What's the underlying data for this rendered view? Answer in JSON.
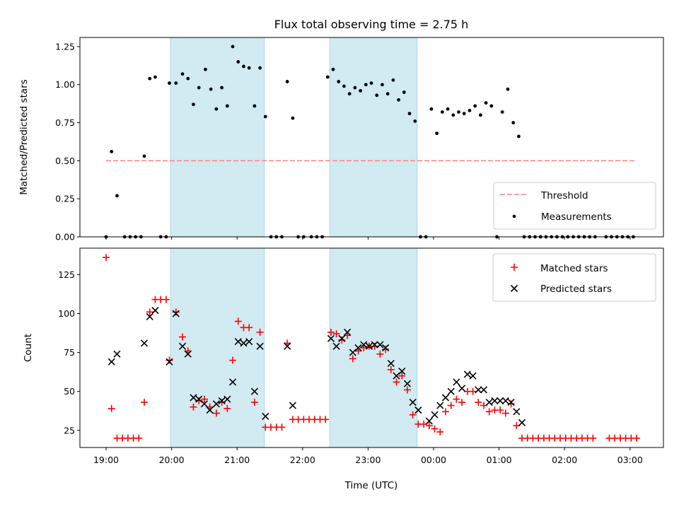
{
  "title": "Flux total observing time = 2.75 h",
  "colors": {
    "threshold": "#ff8080",
    "measurement": "#000000",
    "matched": "#ff0000",
    "predicted": "#000000",
    "shade": "#add8e6"
  },
  "chart_data": [
    {
      "type": "scatter",
      "ylabel": "Matched/Predicted stars",
      "xlabel": "",
      "ylim": [
        0,
        1.31
      ],
      "yticks": [
        "0.00",
        "0.25",
        "0.50",
        "0.75",
        "1.00",
        "1.25"
      ],
      "x_tick_labels_shown": false,
      "shaded_spans": [
        [
          "19:59",
          "21:25"
        ],
        [
          "22:25",
          "23:45"
        ]
      ],
      "legend": {
        "position": "lower right",
        "entries": [
          "Threshold",
          "Measurements"
        ]
      },
      "series": [
        {
          "name": "Threshold",
          "kind": "dashed-line",
          "x": [
            "19:00",
            "03:05"
          ],
          "y": [
            0.5,
            0.5
          ]
        },
        {
          "name": "Measurements",
          "kind": "points",
          "points": [
            [
              "19:00",
              0.0
            ],
            [
              "19:05",
              0.56
            ],
            [
              "19:10",
              0.27
            ],
            [
              "19:17",
              0.0
            ],
            [
              "19:22",
              0.0
            ],
            [
              "19:27",
              0.0
            ],
            [
              "19:32",
              0.0
            ],
            [
              "19:35",
              0.53
            ],
            [
              "19:40",
              1.04
            ],
            [
              "19:45",
              1.05
            ],
            [
              "19:50",
              0.0
            ],
            [
              "19:55",
              0.0
            ],
            [
              "19:58",
              1.01
            ],
            [
              "20:04",
              1.01
            ],
            [
              "20:10",
              1.07
            ],
            [
              "20:15",
              1.04
            ],
            [
              "20:20",
              0.87
            ],
            [
              "20:25",
              0.98
            ],
            [
              "20:31",
              1.1
            ],
            [
              "20:36",
              0.97
            ],
            [
              "20:41",
              0.84
            ],
            [
              "20:46",
              0.98
            ],
            [
              "20:51",
              0.86
            ],
            [
              "20:56",
              1.25
            ],
            [
              "21:01",
              1.15
            ],
            [
              "21:06",
              1.12
            ],
            [
              "21:11",
              1.11
            ],
            [
              "21:16",
              0.86
            ],
            [
              "21:21",
              1.11
            ],
            [
              "21:26",
              0.79
            ],
            [
              "21:31",
              0.0
            ],
            [
              "21:36",
              0.0
            ],
            [
              "21:41",
              0.0
            ],
            [
              "21:46",
              1.02
            ],
            [
              "21:51",
              0.78
            ],
            [
              "21:56",
              0.0
            ],
            [
              "22:01",
              0.0
            ],
            [
              "22:08",
              0.0
            ],
            [
              "22:13",
              0.0
            ],
            [
              "22:18",
              0.0
            ],
            [
              "22:23",
              1.05
            ],
            [
              "22:28",
              1.1
            ],
            [
              "22:33",
              1.02
            ],
            [
              "22:38",
              0.99
            ],
            [
              "22:43",
              0.94
            ],
            [
              "22:48",
              0.98
            ],
            [
              "22:53",
              0.96
            ],
            [
              "22:58",
              1.0
            ],
            [
              "23:03",
              1.01
            ],
            [
              "23:08",
              0.93
            ],
            [
              "23:13",
              1.0
            ],
            [
              "23:18",
              0.94
            ],
            [
              "23:23",
              1.03
            ],
            [
              "23:28",
              0.9
            ],
            [
              "23:33",
              0.95
            ],
            [
              "23:38",
              0.81
            ],
            [
              "23:43",
              0.76
            ],
            [
              "23:48",
              0.0
            ],
            [
              "23:53",
              0.0
            ],
            [
              "23:58",
              0.84
            ],
            [
              "00:03",
              0.68
            ],
            [
              "00:08",
              0.82
            ],
            [
              "00:13",
              0.84
            ],
            [
              "00:18",
              0.8
            ],
            [
              "00:23",
              0.82
            ],
            [
              "00:28",
              0.81
            ],
            [
              "00:33",
              0.83
            ],
            [
              "00:38",
              0.86
            ],
            [
              "00:43",
              0.8
            ],
            [
              "00:48",
              0.88
            ],
            [
              "00:53",
              0.86
            ],
            [
              "00:58",
              0.0
            ],
            [
              "01:03",
              0.82
            ],
            [
              "01:08",
              0.97
            ],
            [
              "01:13",
              0.75
            ],
            [
              "01:18",
              0.66
            ],
            [
              "01:23",
              0.0
            ],
            [
              "01:28",
              0.0
            ],
            [
              "01:33",
              0.0
            ],
            [
              "01:38",
              0.0
            ],
            [
              "01:43",
              0.0
            ],
            [
              "01:48",
              0.0
            ],
            [
              "01:53",
              0.0
            ],
            [
              "01:58",
              0.0
            ],
            [
              "02:03",
              0.0
            ],
            [
              "02:08",
              0.0
            ],
            [
              "02:13",
              0.0
            ],
            [
              "02:18",
              0.0
            ],
            [
              "02:23",
              0.0
            ],
            [
              "02:28",
              0.0
            ],
            [
              "02:38",
              0.0
            ],
            [
              "02:43",
              0.0
            ],
            [
              "02:48",
              0.0
            ],
            [
              "02:53",
              0.0
            ],
            [
              "02:58",
              0.0
            ],
            [
              "03:03",
              0.0
            ]
          ]
        }
      ]
    },
    {
      "type": "scatter",
      "ylabel": "Count",
      "xlabel": "Time (UTC)",
      "ylim": [
        14,
        142
      ],
      "yticks": [
        "25",
        "50",
        "75",
        "100",
        "125"
      ],
      "xticks": [
        "19:00",
        "20:00",
        "21:00",
        "22:00",
        "23:00",
        "00:00",
        "01:00",
        "02:00",
        "03:00"
      ],
      "shaded_spans": [
        [
          "19:59",
          "21:25"
        ],
        [
          "22:25",
          "23:45"
        ]
      ],
      "legend": {
        "position": "upper right",
        "entries": [
          "Matched stars",
          "Predicted stars"
        ]
      },
      "series": [
        {
          "name": "Matched stars",
          "marker": "+",
          "points": [
            [
              "19:00",
              136
            ],
            [
              "19:05",
              39
            ],
            [
              "19:10",
              20
            ],
            [
              "19:15",
              20
            ],
            [
              "19:20",
              20
            ],
            [
              "19:25",
              20
            ],
            [
              "19:30",
              20
            ],
            [
              "19:35",
              43
            ],
            [
              "19:40",
              101
            ],
            [
              "19:45",
              109
            ],
            [
              "19:50",
              109
            ],
            [
              "19:55",
              109
            ],
            [
              "19:58",
              70
            ],
            [
              "20:04",
              101
            ],
            [
              "20:10",
              85
            ],
            [
              "20:15",
              76
            ],
            [
              "20:20",
              40
            ],
            [
              "20:25",
              44
            ],
            [
              "20:30",
              45
            ],
            [
              "20:35",
              40
            ],
            [
              "20:41",
              36
            ],
            [
              "20:46",
              43
            ],
            [
              "20:51",
              39
            ],
            [
              "20:56",
              70
            ],
            [
              "21:01",
              95
            ],
            [
              "21:06",
              91
            ],
            [
              "21:11",
              91
            ],
            [
              "21:16",
              43
            ],
            [
              "21:21",
              88
            ],
            [
              "21:26",
              27
            ],
            [
              "21:31",
              27
            ],
            [
              "21:36",
              27
            ],
            [
              "21:41",
              27
            ],
            [
              "21:46",
              81
            ],
            [
              "21:51",
              32
            ],
            [
              "21:56",
              32
            ],
            [
              "22:01",
              32
            ],
            [
              "22:06",
              32
            ],
            [
              "22:11",
              32
            ],
            [
              "22:16",
              32
            ],
            [
              "22:21",
              32
            ],
            [
              "22:26",
              88
            ],
            [
              "22:31",
              87
            ],
            [
              "22:36",
              83
            ],
            [
              "22:41",
              86
            ],
            [
              "22:46",
              71
            ],
            [
              "22:51",
              76
            ],
            [
              "22:56",
              78
            ],
            [
              "23:01",
              79
            ],
            [
              "23:06",
              79
            ],
            [
              "23:11",
              74
            ],
            [
              "23:16",
              77
            ],
            [
              "23:21",
              64
            ],
            [
              "23:26",
              56
            ],
            [
              "23:31",
              60
            ],
            [
              "23:36",
              51
            ],
            [
              "23:41",
              35
            ],
            [
              "23:46",
              29
            ],
            [
              "23:51",
              29
            ],
            [
              "23:56",
              28
            ],
            [
              "00:01",
              26
            ],
            [
              "00:06",
              24
            ],
            [
              "00:11",
              37
            ],
            [
              "00:16",
              41
            ],
            [
              "00:21",
              45
            ],
            [
              "00:26",
              43
            ],
            [
              "00:31",
              50
            ],
            [
              "00:36",
              50
            ],
            [
              "00:41",
              43
            ],
            [
              "00:46",
              41
            ],
            [
              "00:51",
              37
            ],
            [
              "00:56",
              38
            ],
            [
              "01:01",
              38
            ],
            [
              "01:06",
              36
            ],
            [
              "01:11",
              42
            ],
            [
              "01:16",
              28
            ],
            [
              "01:21",
              20
            ],
            [
              "01:26",
              20
            ],
            [
              "01:31",
              20
            ],
            [
              "01:36",
              20
            ],
            [
              "01:41",
              20
            ],
            [
              "01:46",
              20
            ],
            [
              "01:51",
              20
            ],
            [
              "01:56",
              20
            ],
            [
              "02:01",
              20
            ],
            [
              "02:06",
              20
            ],
            [
              "02:11",
              20
            ],
            [
              "02:16",
              20
            ],
            [
              "02:21",
              20
            ],
            [
              "02:26",
              20
            ],
            [
              "02:41",
              20
            ],
            [
              "02:46",
              20
            ],
            [
              "02:51",
              20
            ],
            [
              "02:56",
              20
            ],
            [
              "03:01",
              20
            ],
            [
              "03:06",
              20
            ]
          ]
        },
        {
          "name": "Predicted stars",
          "marker": "x",
          "points": [
            [
              "19:05",
              69
            ],
            [
              "19:10",
              74
            ],
            [
              "19:35",
              81
            ],
            [
              "19:40",
              98
            ],
            [
              "19:45",
              102
            ],
            [
              "19:58",
              69
            ],
            [
              "20:04",
              100
            ],
            [
              "20:10",
              79
            ],
            [
              "20:15",
              74
            ],
            [
              "20:20",
              46
            ],
            [
              "20:25",
              45
            ],
            [
              "20:30",
              42
            ],
            [
              "20:35",
              38
            ],
            [
              "20:41",
              42
            ],
            [
              "20:46",
              44
            ],
            [
              "20:51",
              45
            ],
            [
              "20:56",
              56
            ],
            [
              "21:01",
              82
            ],
            [
              "21:06",
              81
            ],
            [
              "21:11",
              82
            ],
            [
              "21:16",
              50
            ],
            [
              "21:21",
              79
            ],
            [
              "21:26",
              34
            ],
            [
              "21:46",
              79
            ],
            [
              "21:51",
              41
            ],
            [
              "22:26",
              84
            ],
            [
              "22:31",
              79
            ],
            [
              "22:36",
              84
            ],
            [
              "22:41",
              88
            ],
            [
              "22:46",
              75
            ],
            [
              "22:51",
              78
            ],
            [
              "22:56",
              80
            ],
            [
              "23:01",
              79
            ],
            [
              "23:06",
              80
            ],
            [
              "23:11",
              80
            ],
            [
              "23:16",
              78
            ],
            [
              "23:21",
              68
            ],
            [
              "23:26",
              60
            ],
            [
              "23:31",
              63
            ],
            [
              "23:36",
              55
            ],
            [
              "23:41",
              43
            ],
            [
              "23:46",
              38
            ],
            [
              "23:56",
              31
            ],
            [
              "00:01",
              35
            ],
            [
              "00:06",
              41
            ],
            [
              "00:11",
              46
            ],
            [
              "00:16",
              50
            ],
            [
              "00:21",
              56
            ],
            [
              "00:26",
              52
            ],
            [
              "00:31",
              61
            ],
            [
              "00:36",
              60
            ],
            [
              "00:41",
              51
            ],
            [
              "00:46",
              51
            ],
            [
              "00:51",
              43
            ],
            [
              "00:56",
              44
            ],
            [
              "01:01",
              44
            ],
            [
              "01:06",
              44
            ],
            [
              "01:11",
              43
            ],
            [
              "01:16",
              37
            ],
            [
              "01:21",
              30
            ]
          ]
        }
      ]
    }
  ]
}
